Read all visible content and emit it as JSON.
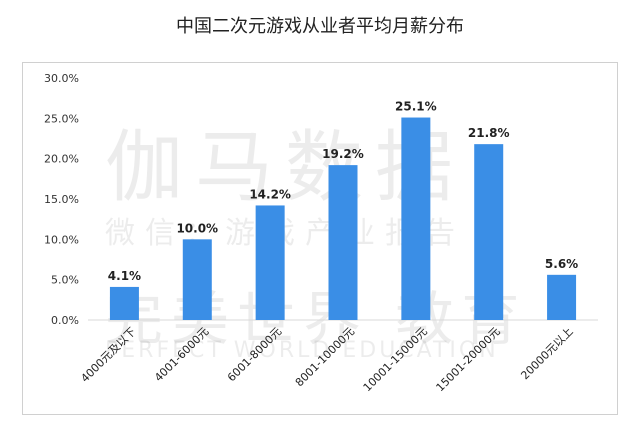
{
  "chart_data": {
    "type": "bar",
    "title": "中国二次元游戏从业者平均月薪分布",
    "categories": [
      "4000元及以下",
      "4001-6000元",
      "6001-8000元",
      "8001-10000元",
      "10001-15000元",
      "15001-20000元",
      "20000元以上"
    ],
    "values": [
      4.1,
      10.0,
      14.2,
      19.2,
      25.1,
      21.8,
      5.6
    ],
    "data_labels": [
      "4.1%",
      "10.0%",
      "14.2%",
      "19.2%",
      "25.1%",
      "21.8%",
      "5.6%"
    ],
    "yticks": [
      "0.0%",
      "5.0%",
      "10.0%",
      "15.0%",
      "20.0%",
      "25.0%",
      "30.0%"
    ],
    "ylim": [
      0,
      30
    ],
    "xlabel": "",
    "ylabel": "",
    "grid": false,
    "bar_color": "#3a8ee6"
  },
  "watermark": {
    "line1": "伽马数据",
    "line2": "微信：游戏产业报告",
    "line3": "完美世界 教育",
    "line4": "PERFECT WORLD EDUCATION"
  }
}
